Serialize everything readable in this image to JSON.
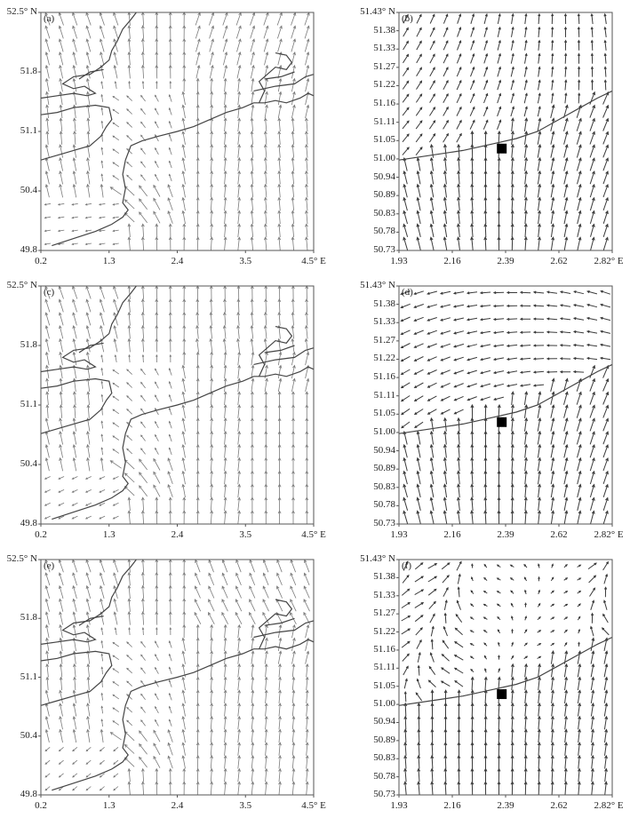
{
  "figure": {
    "panels": [
      {
        "id": "a",
        "label": "(a)",
        "region": "wide",
        "yticks": [
          "52.5° N",
          "51.8",
          "51.1",
          "50.4",
          "49.8"
        ],
        "xticks": [
          "0.2",
          "1.3",
          "2.4",
          "3.5",
          "4.5° E"
        ],
        "marker": false
      },
      {
        "id": "b",
        "label": "(b)",
        "region": "zoom",
        "yticks": [
          "51.43° N",
          "51.38",
          "51.33",
          "51.27",
          "51.22",
          "51.16",
          "51.11",
          "51.05",
          "51.00",
          "50.94",
          "50.89",
          "50.83",
          "50.78",
          "50.73"
        ],
        "xticks": [
          "1.93",
          "2.16",
          "2.39",
          "2.62",
          "2.82° E"
        ],
        "marker": true
      },
      {
        "id": "c",
        "label": "(c)",
        "region": "wide",
        "yticks": [
          "52.5° N",
          "51.8",
          "51.1",
          "50.4",
          "49.8"
        ],
        "xticks": [
          "0.2",
          "1.3",
          "2.4",
          "3.5",
          "4.5° E"
        ],
        "marker": false
      },
      {
        "id": "d",
        "label": "(d)",
        "region": "zoom",
        "yticks": [
          "51.43° N",
          "51.38",
          "51.33",
          "51.27",
          "51.22",
          "51.16",
          "51.11",
          "51.05",
          "51.00",
          "50.94",
          "50.89",
          "50.83",
          "50.78",
          "50.73"
        ],
        "xticks": [
          "1.93",
          "2.16",
          "2.39",
          "2.62",
          "2.82° E"
        ],
        "marker": true
      },
      {
        "id": "e",
        "label": "(e)",
        "region": "wide",
        "yticks": [
          "52.5° N",
          "51.8",
          "51.1",
          "50.4",
          "49.8"
        ],
        "xticks": [
          "0.2",
          "1.3",
          "2.4",
          "3.5",
          "4.5° E"
        ],
        "marker": false
      },
      {
        "id": "f",
        "label": "(f)",
        "region": "zoom",
        "yticks": [
          "51.43° N",
          "51.38",
          "51.33",
          "51.27",
          "51.22",
          "51.16",
          "51.11",
          "51.05",
          "51.00",
          "50.94",
          "50.89",
          "50.83",
          "50.78",
          "50.73"
        ],
        "xticks": [
          "1.93",
          "2.16",
          "2.39",
          "2.62",
          "2.82° E"
        ],
        "marker": true
      }
    ],
    "colors": {
      "frame": "#555555",
      "coast": "#444444",
      "arrow_wide": "#7a7a7a",
      "arrow_zoom": "#3a3a3a",
      "marker": "#000000",
      "background": "#ffffff"
    }
  }
}
